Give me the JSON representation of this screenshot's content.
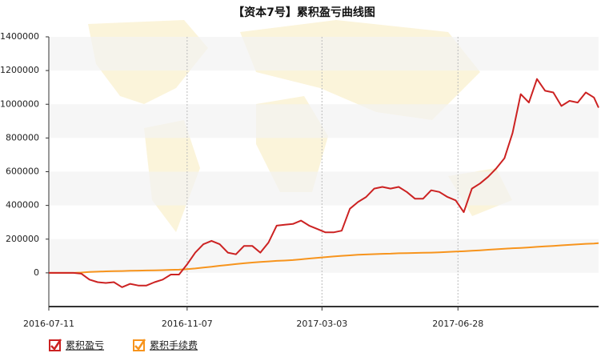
{
  "chart_data": {
    "type": "line",
    "title": "【资本7号】累积盈亏曲线图",
    "x": [
      "2016-07-11",
      "2016-07-18",
      "2016-07-25",
      "2016-08-01",
      "2016-08-08",
      "2016-08-15",
      "2016-08-22",
      "2016-08-29",
      "2016-09-05",
      "2016-09-12",
      "2016-09-19",
      "2016-09-26",
      "2016-10-03",
      "2016-10-10",
      "2016-10-17",
      "2016-10-24",
      "2016-10-31",
      "2016-11-07",
      "2016-11-14",
      "2016-11-21",
      "2016-11-28",
      "2016-12-05",
      "2016-12-12",
      "2016-12-19",
      "2016-12-26",
      "2017-01-02",
      "2017-01-09",
      "2017-01-16",
      "2017-01-23",
      "2017-01-30",
      "2017-02-06",
      "2017-02-13",
      "2017-02-20",
      "2017-02-27",
      "2017-03-06",
      "2017-03-13",
      "2017-03-20",
      "2017-03-27",
      "2017-04-03",
      "2017-04-10",
      "2017-04-17",
      "2017-04-24",
      "2017-05-01",
      "2017-05-08",
      "2017-05-15",
      "2017-05-22",
      "2017-05-29",
      "2017-06-05",
      "2017-06-12",
      "2017-06-19",
      "2017-06-26",
      "2017-07-03",
      "2017-07-10",
      "2017-07-17",
      "2017-07-24",
      "2017-07-31",
      "2017-08-07",
      "2017-08-14",
      "2017-08-21",
      "2017-08-28",
      "2017-09-04",
      "2017-09-11",
      "2017-09-18",
      "2017-09-25",
      "2017-10-02",
      "2017-10-09",
      "2017-10-16",
      "2017-10-23",
      "2017-10-27"
    ],
    "series": [
      {
        "name": "累积盈亏",
        "color": "#cc2222",
        "values": [
          0,
          0,
          0,
          0,
          -5000,
          -40000,
          -55000,
          -60000,
          -55000,
          -85000,
          -65000,
          -75000,
          -75000,
          -55000,
          -40000,
          -10000,
          -10000,
          50000,
          120000,
          170000,
          190000,
          170000,
          120000,
          110000,
          160000,
          160000,
          120000,
          180000,
          280000,
          285000,
          290000,
          310000,
          280000,
          260000,
          240000,
          240000,
          250000,
          380000,
          420000,
          450000,
          500000,
          510000,
          500000,
          510000,
          480000,
          440000,
          440000,
          490000,
          480000,
          450000,
          430000,
          360000,
          500000,
          530000,
          570000,
          620000,
          680000,
          830000,
          1060000,
          1010000,
          1150000,
          1080000,
          1070000,
          990000,
          1020000,
          1010000,
          1070000,
          1040000,
          980000
        ]
      },
      {
        "name": "累积手续费",
        "color": "#f7941d",
        "values": [
          0,
          0,
          0,
          0,
          2000,
          5000,
          7000,
          9000,
          10000,
          11000,
          12000,
          13000,
          14000,
          15000,
          16000,
          18000,
          19000,
          22000,
          26000,
          31000,
          36000,
          42000,
          47000,
          52000,
          57000,
          61000,
          65000,
          68000,
          71000,
          73000,
          76000,
          80000,
          85000,
          89000,
          93000,
          97000,
          101000,
          104000,
          107000,
          109000,
          111000,
          113000,
          114000,
          116000,
          117000,
          118000,
          119000,
          120000,
          122000,
          124000,
          126000,
          128000,
          131000,
          134000,
          137000,
          140000,
          143000,
          146000,
          148000,
          151000,
          154000,
          157000,
          160000,
          163000,
          166000,
          169000,
          172000,
          174000,
          176000
        ]
      }
    ],
    "xlim": [
      "2016-07-11",
      "2017-10-27"
    ],
    "xticks": [
      "2016-07-11",
      "2016-11-07",
      "2017-03-03",
      "2017-06-28"
    ],
    "ylim": [
      -200000,
      1400000
    ],
    "yticks": [
      0,
      200000,
      400000,
      600000,
      800000,
      1000000,
      1200000,
      1400000
    ],
    "grid": true
  }
}
